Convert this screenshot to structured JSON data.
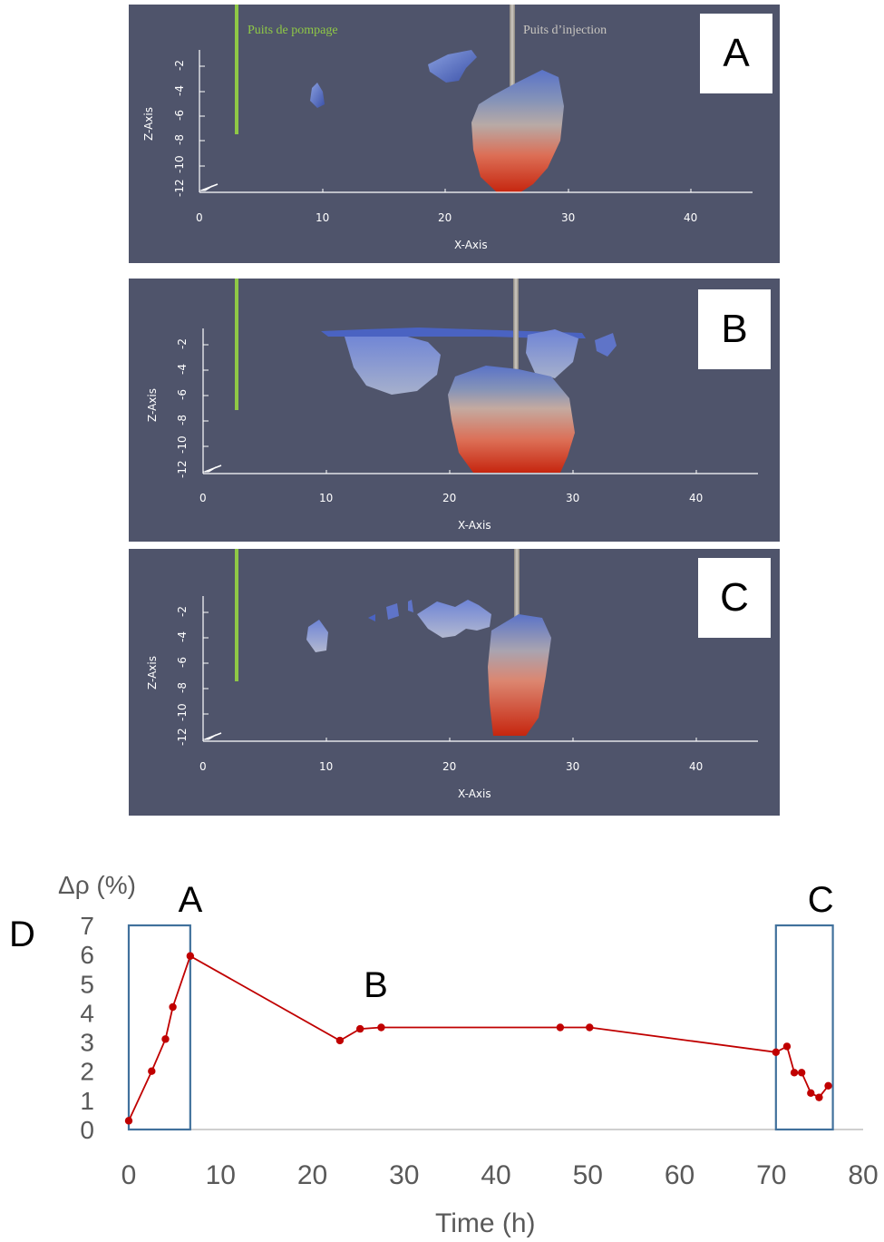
{
  "panels": [
    {
      "label": "A",
      "pump_well_label": "Puits de pompage",
      "injection_well_label": "Puits d’injection",
      "x_axis_title": "X-Axis",
      "z_axis_title": "Z-Axis",
      "x_ticks": [
        "0",
        "10",
        "20",
        "30",
        "40"
      ],
      "z_ticks": [
        "-12",
        "-10",
        "-8",
        "-6",
        "-4",
        "-2"
      ]
    },
    {
      "label": "B",
      "x_axis_title": "X-Axis",
      "z_axis_title": "Z-Axis",
      "x_ticks": [
        "0",
        "10",
        "20",
        "30",
        "40"
      ],
      "z_ticks": [
        "-12",
        "-10",
        "-8",
        "-6",
        "-4",
        "-2"
      ]
    },
    {
      "label": "C",
      "x_axis_title": "X-Axis",
      "z_axis_title": "Z-Axis",
      "x_ticks": [
        "0",
        "10",
        "20",
        "30",
        "40"
      ],
      "z_ticks": [
        "-12",
        "-10",
        "-8",
        "-6",
        "-4",
        "-2"
      ]
    }
  ],
  "colors": {
    "panel_bg": "#4f546b",
    "pump_well": "#8fc846",
    "injection_well": "#b4b0a8",
    "series": "#c00000",
    "box": "#41719c"
  },
  "chart_data": {
    "type": "line",
    "panel_letter": "D",
    "ylabel": "Δρ (%)",
    "xlabel": "Time (h)",
    "xlim": [
      0,
      80
    ],
    "ylim": [
      0,
      7
    ],
    "x_ticks": [
      "0",
      "10",
      "20",
      "30",
      "40",
      "50",
      "60",
      "70",
      "80"
    ],
    "y_ticks": [
      "0",
      "1",
      "2",
      "3",
      "4",
      "5",
      "6",
      "7"
    ],
    "series": [
      {
        "x": [
          0,
          2.5,
          4,
          4.8,
          6.7,
          23,
          25.2,
          27.5,
          47,
          50.2,
          70.5,
          71.7,
          72.5,
          73.3,
          74.3,
          75.2,
          76.2
        ],
        "y": [
          0.3,
          2.0,
          3.1,
          4.2,
          5.95,
          3.05,
          3.45,
          3.5,
          3.5,
          3.5,
          2.65,
          2.85,
          1.95,
          1.95,
          1.25,
          1.1,
          1.5
        ]
      }
    ],
    "annotations": [
      {
        "label": "A",
        "box_x": [
          0,
          6.7
        ],
        "box_y": [
          0,
          7
        ]
      },
      {
        "label": "B",
        "x": 27.5
      },
      {
        "label": "C",
        "box_x": [
          70.5,
          76.7
        ],
        "box_y": [
          0,
          7
        ]
      }
    ]
  }
}
